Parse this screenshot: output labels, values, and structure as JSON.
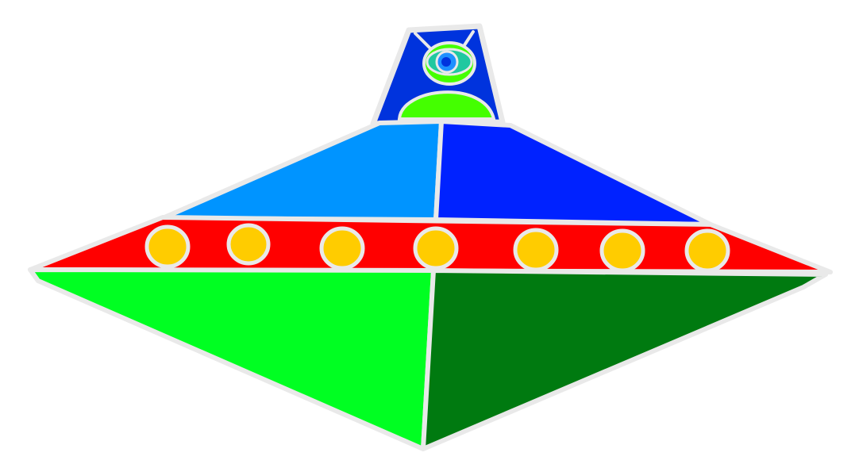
{
  "illustration": {
    "subject": "ufo-with-alien",
    "colors": {
      "background": "#ffffff",
      "outline": "#e9e9e9",
      "cockpit": "#0033dd",
      "alien_body": "#44ff00",
      "alien_head": "#44ff00",
      "alien_eye_outer": "#20c8a0",
      "alien_eye_iris": "#1e90ff",
      "alien_pupil": "#0033dd",
      "upper_left_panel": "#0094ff",
      "upper_right_panel": "#0022ff",
      "band": "#ff0000",
      "window_fill": "#ffcc00",
      "lower_left_panel": "#00ff22",
      "lower_right_panel": "#007a10"
    },
    "windows": [
      {
        "name": "window-1"
      },
      {
        "name": "window-2"
      },
      {
        "name": "window-3"
      },
      {
        "name": "window-4"
      },
      {
        "name": "window-5"
      },
      {
        "name": "window-6"
      },
      {
        "name": "window-7"
      }
    ]
  }
}
